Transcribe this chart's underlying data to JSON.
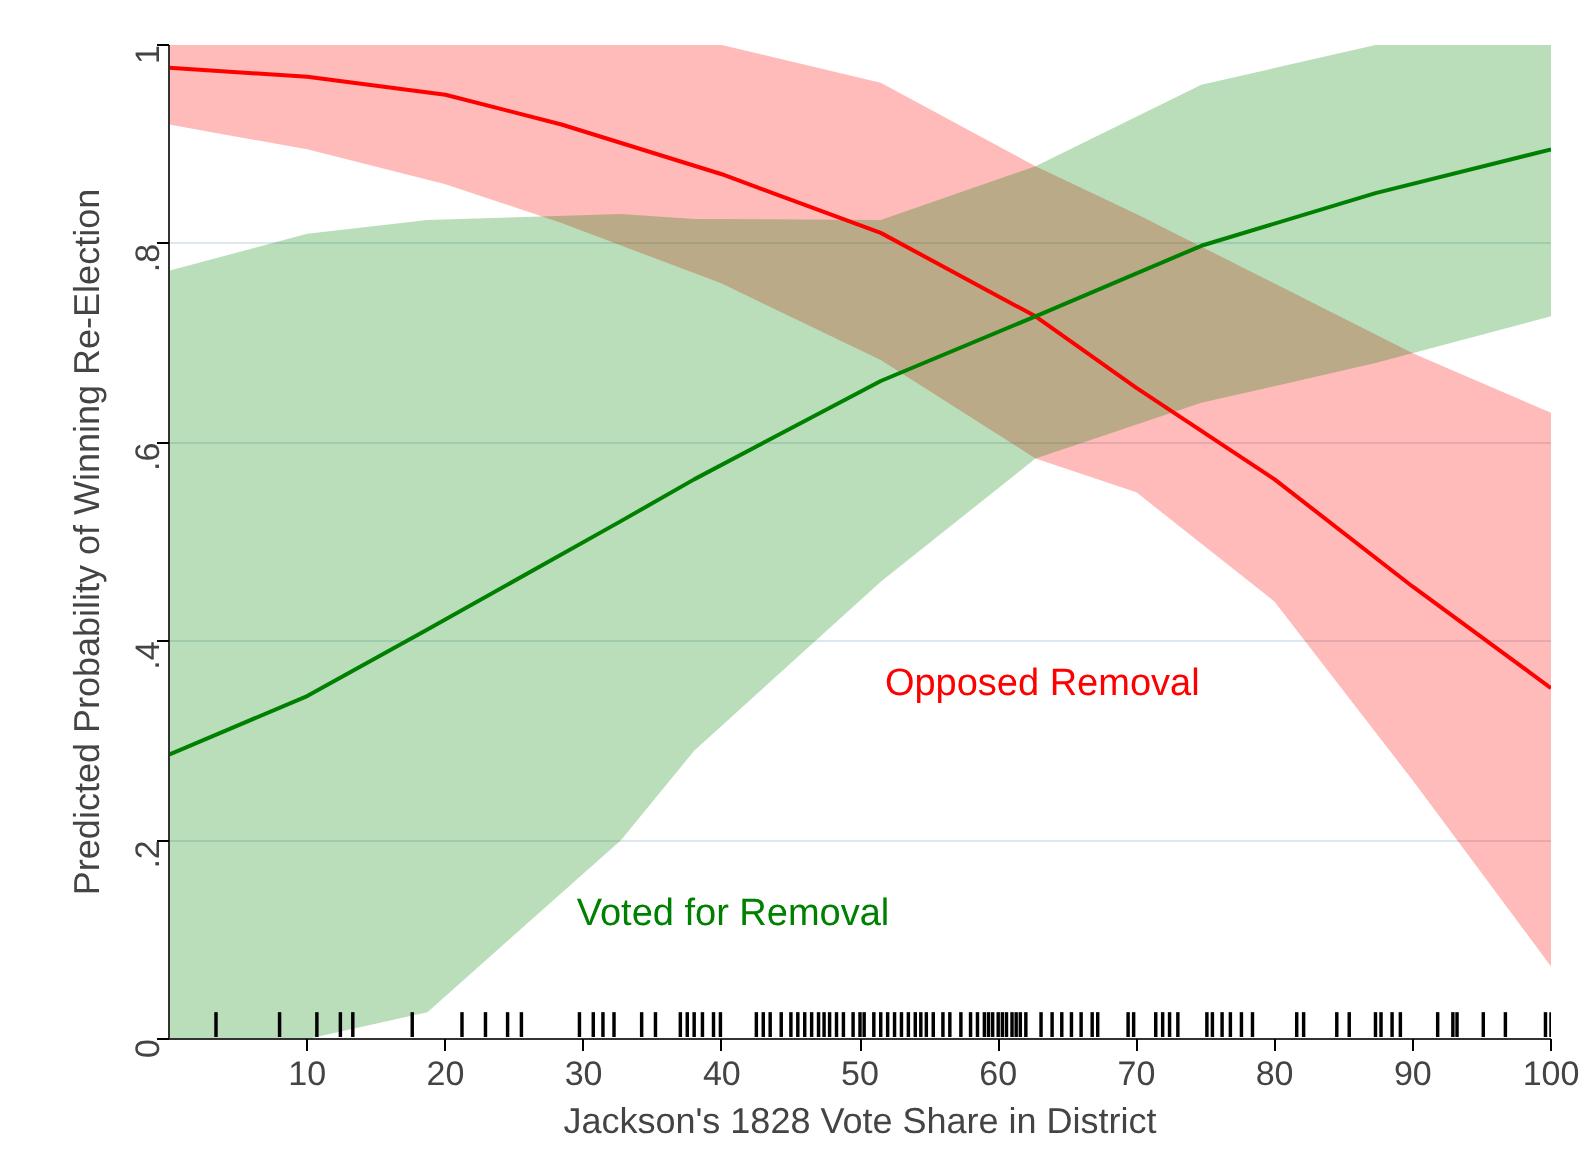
{
  "chart_data": {
    "type": "line",
    "xlabel": "Jackson's 1828 Vote Share in District",
    "ylabel": "Predicted Probability of Winning Re-Election",
    "xlim": [
      0,
      100
    ],
    "ylim": [
      0,
      1
    ],
    "xticks": [
      10,
      20,
      30,
      40,
      50,
      60,
      70,
      80,
      90,
      100
    ],
    "yticks": [
      {
        "value": 0,
        "label": "0"
      },
      {
        "value": 0.2,
        "label": ".2"
      },
      {
        "value": 0.4,
        "label": ".4"
      },
      {
        "value": 0.6,
        "label": ".6"
      },
      {
        "value": 0.8,
        "label": ".8"
      },
      {
        "value": 1,
        "label": "1"
      }
    ],
    "grid": "y",
    "legend": false,
    "series": [
      {
        "name": "Opposed Removal",
        "color": "#ff0000",
        "x": [
          0,
          10,
          20,
          28.4,
          40,
          51.5,
          62.7,
          70,
          80,
          90,
          100
        ],
        "values": [
          0.977,
          0.968,
          0.95,
          0.92,
          0.87,
          0.811,
          0.727,
          0.655,
          0.563,
          0.455,
          0.353
        ],
        "upper": [
          1,
          1,
          1,
          1,
          1,
          0.962,
          0.878,
          0.83,
          0.76,
          0.69,
          0.63
        ],
        "lower": [
          0.92,
          0.895,
          0.86,
          0.821,
          0.76,
          0.683,
          0.584,
          0.55,
          0.44,
          0.26,
          0.073
        ]
      },
      {
        "name": "Voted for Removal",
        "color": "#008000",
        "x": [
          0,
          10,
          18.7,
          32.7,
          38,
          51.5,
          62.7,
          74.7,
          87.3,
          100
        ],
        "values": [
          0.286,
          0.345,
          0.412,
          0.521,
          0.563,
          0.662,
          0.727,
          0.798,
          0.851,
          0.895
        ],
        "upper": [
          0.773,
          0.81,
          0.824,
          0.83,
          0.825,
          0.824,
          0.878,
          0.96,
          1,
          1
        ],
        "lower": [
          0,
          0,
          0.027,
          0.2,
          0.29,
          0.46,
          0.584,
          0.64,
          0.68,
          0.727
        ]
      },
      {
        "type": "bar",
        "color": "#000000",
        "base": [
          0.002,
          0.002,
          0.002,
          0.002,
          0.002,
          0.002,
          0.002,
          0.002,
          0.002,
          0.002,
          0.002,
          0.002,
          0.002,
          0.002,
          0.002,
          0.002,
          0.002,
          0.002,
          0.002,
          0.002,
          0.002,
          0.002,
          0.002,
          0.002,
          0.002,
          0.002,
          0.002,
          0.002,
          0.002,
          0.002,
          0.002,
          0.002,
          0.002,
          0.002,
          0.002,
          0.002,
          0.002,
          0.002,
          0.002,
          0.002,
          0.002,
          0.002,
          0.002,
          0.002,
          0.002,
          0.002,
          0.002,
          0.002,
          0.002,
          0.002,
          0.002,
          0.002,
          0.002,
          0.002,
          0.002,
          0.002,
          0.002,
          0.002,
          0.002,
          0.002,
          0.002,
          0.002,
          0.002,
          0.002,
          0.002,
          0.002,
          0.002,
          0.002,
          0.002,
          0.002,
          0.002,
          0.002,
          0.002,
          0.002,
          0.002,
          0.002,
          0.002,
          0.002,
          0.002,
          0.002,
          0.002,
          0.002,
          0.002,
          0.002,
          0.002,
          0.002,
          0.002,
          0.002,
          0.002,
          0.002,
          0.002,
          0.002,
          0.002,
          0.002,
          0.002,
          0.002,
          0.002
        ],
        "x": [
          3.4,
          8.0,
          10.7,
          12.4,
          13.3,
          17.6,
          21.2,
          22.9,
          24.5,
          25.5,
          29.7,
          30.7,
          31.4,
          32.2,
          34.2,
          35.2,
          37.0,
          37.5,
          38.0,
          38.6,
          39.4,
          39.9,
          42.5,
          43,
          43.5,
          44.3,
          45,
          45.5,
          46,
          46.5,
          47,
          47.4,
          47.8,
          48.3,
          48.8,
          49.5,
          50,
          50.3,
          51,
          51.5,
          52,
          52.5,
          53,
          53.5,
          54,
          54.4,
          54.8,
          55.3,
          56,
          56.5,
          57.3,
          58,
          58.5,
          59,
          59.3,
          59.6,
          60,
          60.3,
          60.6,
          61,
          61.3,
          61.6,
          62,
          63.1,
          63.9,
          64.6,
          65.3,
          66.0,
          66.8,
          67.2,
          69.4,
          69.8,
          71.4,
          71.9,
          72.4,
          73.0,
          75.1,
          75.5,
          76.2,
          76.8,
          77.6,
          78.4,
          81.6,
          82.1,
          84.5,
          85.4,
          87.3,
          87.7,
          88.5,
          89.1,
          91.8,
          92.9,
          93.2,
          95.1,
          96.7,
          99.6,
          100
        ],
        "values": [
          0.025,
          0.025,
          0.025,
          0.025,
          0.025,
          0.025,
          0.025,
          0.025,
          0.025,
          0.025,
          0.025,
          0.025,
          0.025,
          0.025,
          0.025,
          0.025,
          0.025,
          0.025,
          0.025,
          0.025,
          0.025,
          0.025,
          0.025,
          0.025,
          0.025,
          0.025,
          0.025,
          0.025,
          0.025,
          0.025,
          0.025,
          0.025,
          0.025,
          0.025,
          0.025,
          0.025,
          0.025,
          0.025,
          0.025,
          0.025,
          0.025,
          0.025,
          0.025,
          0.025,
          0.025,
          0.025,
          0.025,
          0.025,
          0.025,
          0.025,
          0.025,
          0.025,
          0.025,
          0.025,
          0.025,
          0.025,
          0.025,
          0.025,
          0.025,
          0.025,
          0.025,
          0.025,
          0.025,
          0.025,
          0.025,
          0.025,
          0.025,
          0.025,
          0.025,
          0.025,
          0.025,
          0.025,
          0.025,
          0.025,
          0.025,
          0.025,
          0.025,
          0.025,
          0.025,
          0.025,
          0.025,
          0.025,
          0.025,
          0.025,
          0.025,
          0.025,
          0.025,
          0.025,
          0.025,
          0.025,
          0.025,
          0.025,
          0.025,
          0.025,
          0.025,
          0.025,
          0.025
        ]
      }
    ]
  }
}
